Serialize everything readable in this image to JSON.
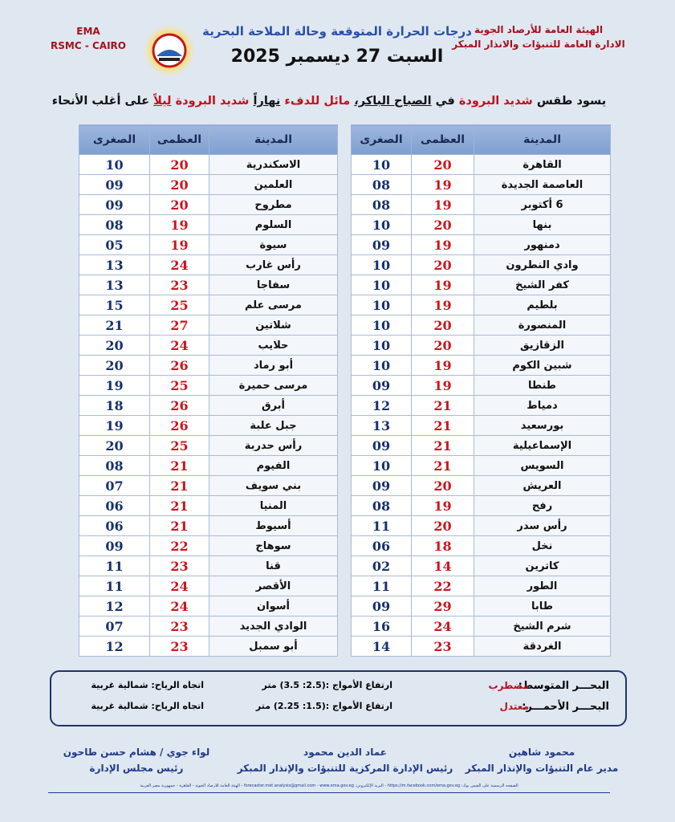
{
  "header": {
    "left": [
      "EMA",
      "RSMC - CAIRO"
    ],
    "right": [
      "الهيئة العامة للأرصاد الجوية",
      "الادارة العامة للتنبؤات والانذار المبكر"
    ],
    "title": "درجات الحرارة المتوقعة وحالة الملاحة البحرية",
    "date": "السبت 27 ديسمبر 2025"
  },
  "summary": [
    "يسود طقس",
    "شديد البرودة",
    "في",
    "الصباح الباكر،",
    "مائل للدفء",
    "نهاراً",
    "شديد البرودة",
    "ليلاً",
    "على أغلب الأنحاء"
  ],
  "tables": [
    {
      "columns": [
        "المدينة",
        "العظمى",
        "الصغرى"
      ],
      "rows": [
        [
          "القاهرة",
          "20",
          "10"
        ],
        [
          "العاصمة الجديدة",
          "19",
          "08"
        ],
        [
          "6 أكتوبر",
          "19",
          "08"
        ],
        [
          "بنها",
          "20",
          "10"
        ],
        [
          "دمنهور",
          "19",
          "09"
        ],
        [
          "وادي النطرون",
          "20",
          "10"
        ],
        [
          "كفر الشيخ",
          "19",
          "10"
        ],
        [
          "بلطيم",
          "19",
          "10"
        ],
        [
          "المنصورة",
          "20",
          "10"
        ],
        [
          "الزقازيق",
          "20",
          "10"
        ],
        [
          "شبين الكوم",
          "19",
          "10"
        ],
        [
          "طنطا",
          "19",
          "09"
        ],
        [
          "دمياط",
          "21",
          "12"
        ],
        [
          "بورسعيد",
          "21",
          "13"
        ],
        [
          "الإسماعيلية",
          "21",
          "09"
        ],
        [
          "السويس",
          "21",
          "10"
        ],
        [
          "العريش",
          "20",
          "09"
        ],
        [
          "رفح",
          "19",
          "08"
        ],
        [
          "رأس سدر",
          "20",
          "11"
        ],
        [
          "نخل",
          "18",
          "06"
        ],
        [
          "كاترين",
          "14",
          "02"
        ],
        [
          "الطور",
          "22",
          "11"
        ],
        [
          "طابا",
          "29",
          "09"
        ],
        [
          "شرم الشيخ",
          "24",
          "16"
        ],
        [
          "الغردقة",
          "23",
          "14"
        ]
      ]
    },
    {
      "columns": [
        "المدينة",
        "العظمى",
        "الصغرى"
      ],
      "rows": [
        [
          "الاسكندرية",
          "20",
          "10"
        ],
        [
          "العلمين",
          "20",
          "09"
        ],
        [
          "مطروح",
          "20",
          "09"
        ],
        [
          "السلوم",
          "19",
          "08"
        ],
        [
          "سيوة",
          "19",
          "05"
        ],
        [
          "رأس غارب",
          "24",
          "13"
        ],
        [
          "سفاجا",
          "23",
          "13"
        ],
        [
          "مرسى علم",
          "25",
          "15"
        ],
        [
          "شلاتين",
          "27",
          "21"
        ],
        [
          "حلايب",
          "24",
          "20"
        ],
        [
          "أبو رماد",
          "26",
          "20"
        ],
        [
          "مرسى حميرة",
          "25",
          "19"
        ],
        [
          "أبرق",
          "26",
          "18"
        ],
        [
          "جبل علبة",
          "26",
          "19"
        ],
        [
          "رأس حدربة",
          "25",
          "20"
        ],
        [
          "الفيوم",
          "21",
          "08"
        ],
        [
          "بني سويف",
          "21",
          "07"
        ],
        [
          "المنيا",
          "21",
          "06"
        ],
        [
          "أسيوط",
          "21",
          "06"
        ],
        [
          "سوهاج",
          "22",
          "09"
        ],
        [
          "قنا",
          "23",
          "11"
        ],
        [
          "الأقصر",
          "24",
          "11"
        ],
        [
          "أسوان",
          "24",
          "12"
        ],
        [
          "الوادي الجديد",
          "23",
          "07"
        ],
        [
          "أبو سمبل",
          "23",
          "12"
        ]
      ]
    }
  ],
  "sea": [
    {
      "name": "البحـــر المتوسط:",
      "state": "مضطرب",
      "waves": "ارتفاع الأمواج :(2.5: 3.5) متر",
      "wind": "اتجاه الرياح: شمالية غربية"
    },
    {
      "name": "البحـــر الأحمـــر:",
      "state": "معتدل",
      "waves": "ارتفاع الأمواج :(1.5: 2.25) متر",
      "wind": "اتجاه الرياح: شمالية غربية"
    }
  ],
  "signatures": [
    {
      "name": "محمود شاهين",
      "role": "مدير عام التنبؤات والإنذار المبكر"
    },
    {
      "name": "عماد الدين محمود",
      "role": "رئيس الإدارة المركزية للتنبؤات والإنذار المبكر"
    },
    {
      "name": "لواء جوي / هشام حسن طاحون",
      "role": "رئيس مجلس الإدارة"
    }
  ],
  "footer": "الصفحة الرسمية على الفيس بوك: https://m.facebook.com/ema.gov.eg - البريد الإلكتروني: forecaster.met.analysis@gmail.com - www.ema.gov.eg - الهيئة العامة للأرصاد الجوية - القاهرة - جمهورية مصر العربية"
}
